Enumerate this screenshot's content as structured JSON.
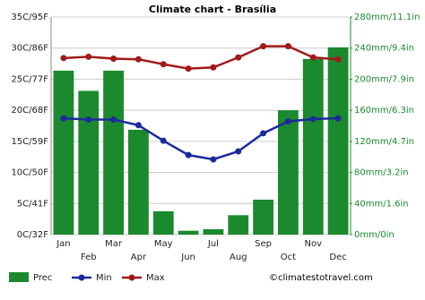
{
  "chart_data": {
    "type": "combo",
    "title": "Climate chart - Brasília",
    "categories": [
      "Jan",
      "Feb",
      "Mar",
      "Apr",
      "May",
      "Jun",
      "Jul",
      "Aug",
      "Sep",
      "Oct",
      "Nov",
      "Dec"
    ],
    "series": [
      {
        "name": "Prec",
        "type": "bar",
        "axis": "y2",
        "color": "#1b8a2e",
        "values": [
          211,
          185,
          211,
          135,
          30,
          5,
          7,
          25,
          45,
          160,
          226,
          241
        ]
      },
      {
        "name": "Min",
        "type": "line",
        "axis": "y",
        "color": "#1c2a9c",
        "values": [
          18.7,
          18.5,
          18.5,
          17.6,
          15.1,
          12.8,
          12.1,
          13.4,
          16.3,
          18.2,
          18.6,
          18.7
        ]
      },
      {
        "name": "Max",
        "type": "line",
        "axis": "y",
        "color": "#a11a1a",
        "values": [
          28.4,
          28.6,
          28.3,
          28.2,
          27.4,
          26.7,
          26.9,
          28.5,
          30.3,
          30.3,
          28.5,
          28.2
        ]
      }
    ],
    "ylim": [
      0,
      35
    ],
    "yticks": [
      {
        "value": 0,
        "label": "0C/32F"
      },
      {
        "value": 5,
        "label": "5C/41F"
      },
      {
        "value": 10,
        "label": "10C/50F"
      },
      {
        "value": 15,
        "label": "15C/59F"
      },
      {
        "value": 20,
        "label": "20C/68F"
      },
      {
        "value": 25,
        "label": "25C/77F"
      },
      {
        "value": 30,
        "label": "30C/86F"
      },
      {
        "value": 35,
        "label": "35C/95F"
      }
    ],
    "y2lim": [
      0,
      280
    ],
    "y2ticks": [
      {
        "value": 0,
        "label": "0mm/0in"
      },
      {
        "value": 40,
        "label": "40mm/1.6in"
      },
      {
        "value": 80,
        "label": "80mm/3.2in"
      },
      {
        "value": 120,
        "label": "120mm/4.7in"
      },
      {
        "value": 160,
        "label": "160mm/6.3in"
      },
      {
        "value": 200,
        "label": "200mm/7.9in"
      },
      {
        "value": 240,
        "label": "240mm/9.4in"
      },
      {
        "value": 280,
        "label": "280mm/11.1in"
      }
    ],
    "grid": true,
    "source": "©climatestotravel.com"
  }
}
